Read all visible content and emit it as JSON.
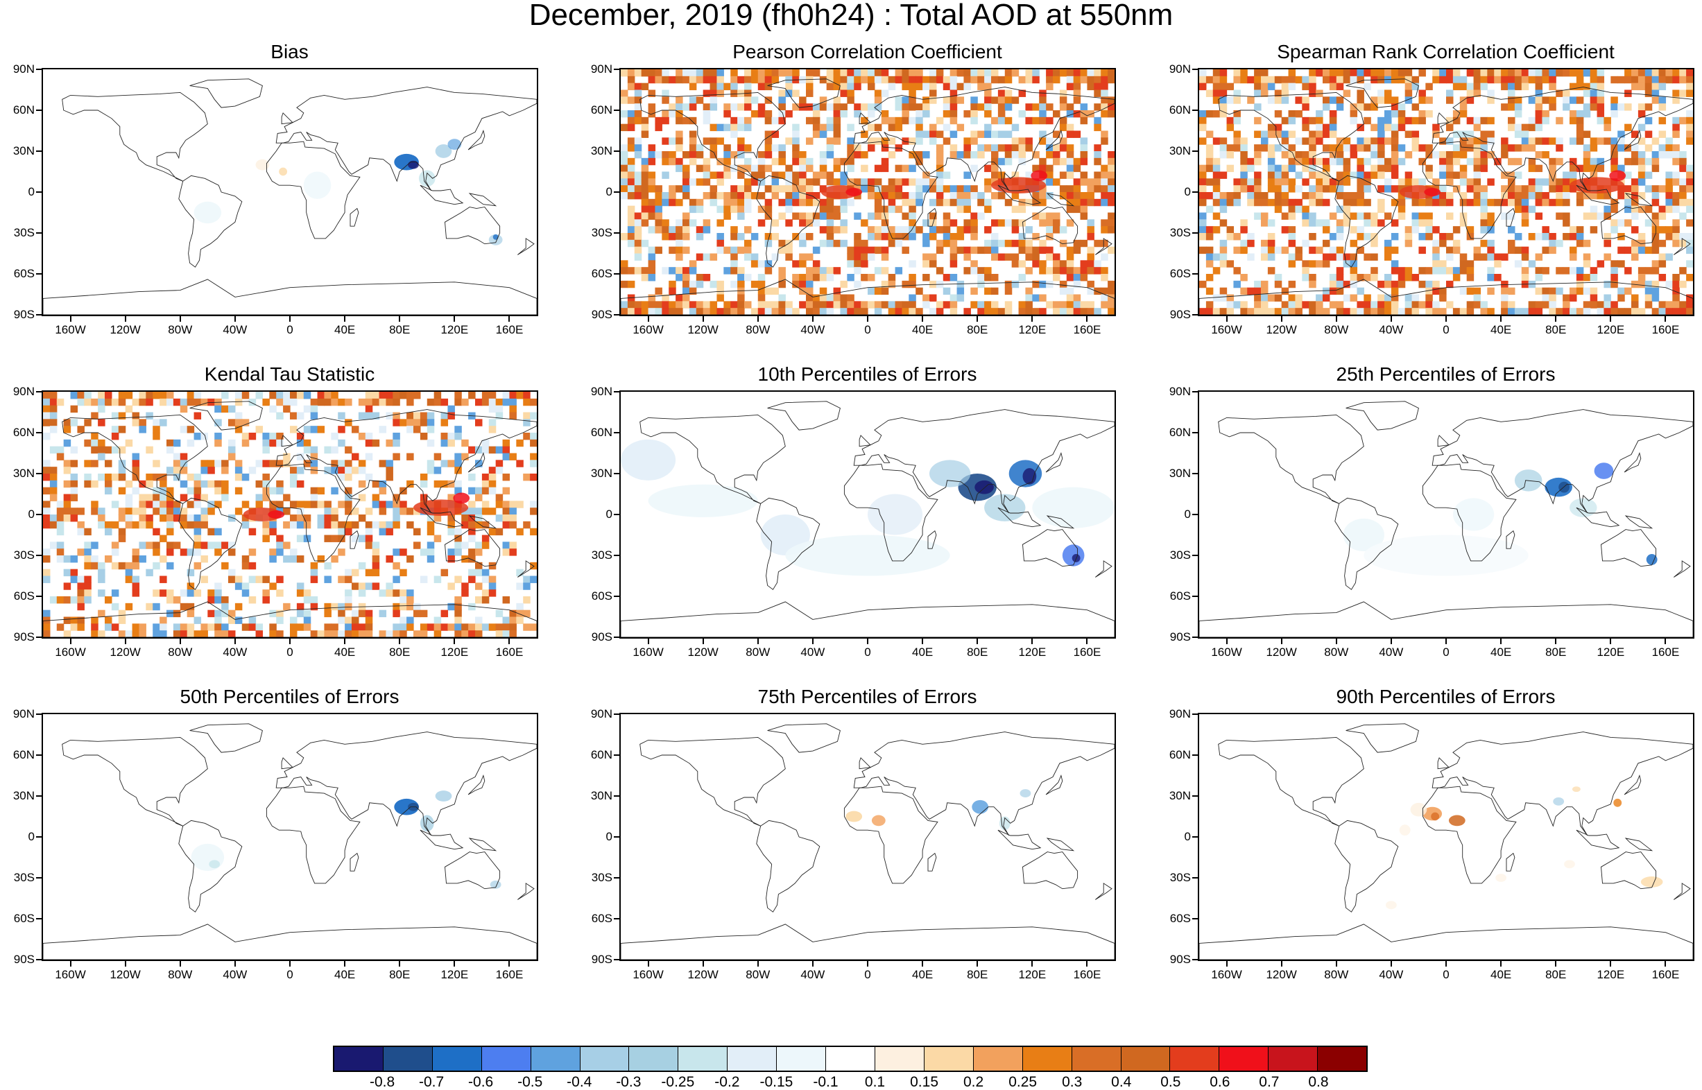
{
  "figure": {
    "title": "December, 2019 (fh0h24) : Total AOD at 550nm",
    "lat_labels": [
      "90N",
      "60N",
      "30N",
      "0",
      "30S",
      "60S",
      "90S"
    ],
    "lon_labels": [
      "160W",
      "120W",
      "80W",
      "40W",
      "0",
      "40E",
      "80E",
      "120E",
      "160E"
    ],
    "panels": [
      {
        "title": "Bias",
        "style": "bias"
      },
      {
        "title": "Pearson Correlation Coefficient",
        "style": "corr"
      },
      {
        "title": "Spearman Rank Correlation Coefficient",
        "style": "corr"
      },
      {
        "title": "Kendal Tau Statistic",
        "style": "tau"
      },
      {
        "title": "10th Percentiles of Errors",
        "style": "p10"
      },
      {
        "title": "25th Percentiles of Errors",
        "style": "p25"
      },
      {
        "title": "50th Percentiles of Errors",
        "style": "p50"
      },
      {
        "title": "75th Percentiles of Errors",
        "style": "p75"
      },
      {
        "title": "90th Percentiles of Errors",
        "style": "p90"
      }
    ]
  },
  "colorbar": {
    "colors": [
      "#191970",
      "#1f4e8c",
      "#1e6fc6",
      "#4d7ef0",
      "#5fa2df",
      "#a7cfe6",
      "#a7d0e2",
      "#c8e6ec",
      "#e2eef8",
      "#edf7fb",
      "#ffffff",
      "#fdf0e0",
      "#fbd9a6",
      "#f2a15d",
      "#e87e15",
      "#d96e26",
      "#d06820",
      "#e33d1d",
      "#f0101a",
      "#c8141c",
      "#8b0000"
    ],
    "labels": [
      "-0.8",
      "-0.7",
      "-0.6",
      "-0.5",
      "-0.4",
      "-0.3",
      "-0.25",
      "-0.2",
      "-0.15",
      "-0.1",
      "0.1",
      "0.15",
      "0.2",
      "0.25",
      "0.3",
      "0.4",
      "0.5",
      "0.6",
      "0.7",
      "0.8"
    ]
  }
}
